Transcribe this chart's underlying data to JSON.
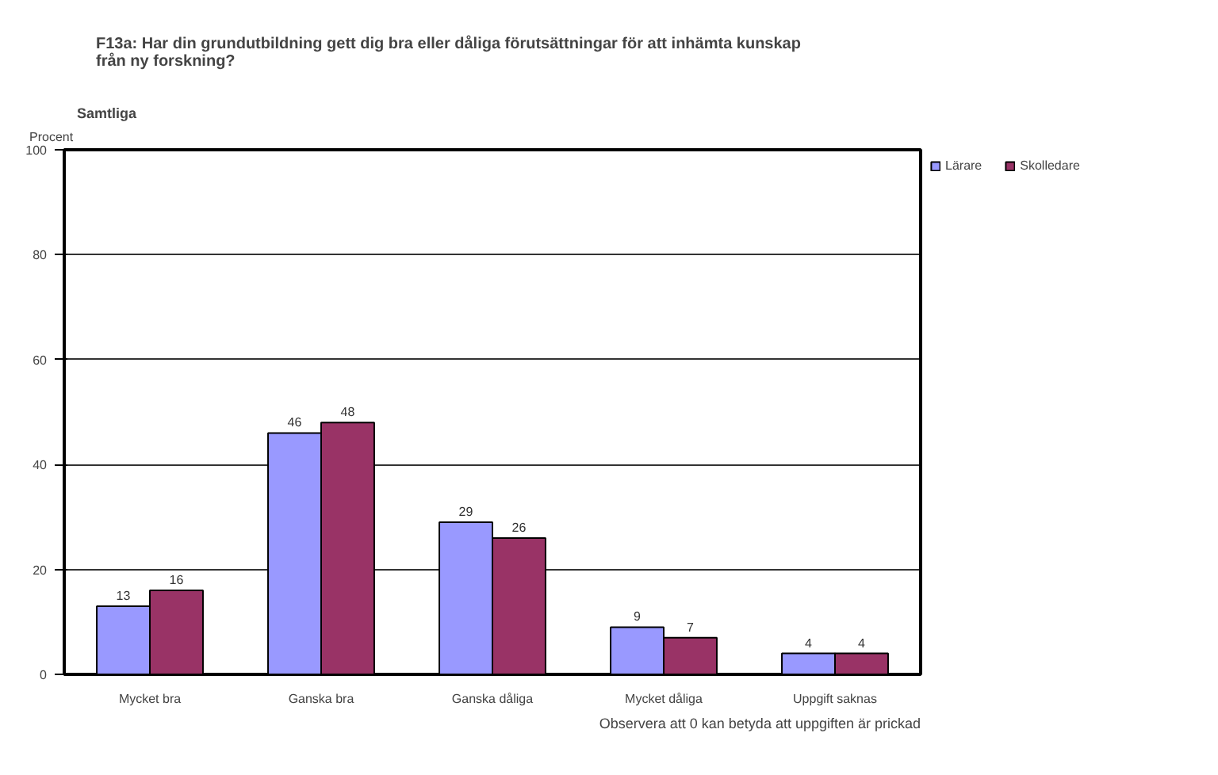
{
  "chart_data": {
    "type": "bar",
    "title": "F13a: Har din grundutbildning gett dig bra eller dåliga förutsättningar för att inhämta kunskap från ny forskning?",
    "subtitle": "Samtliga",
    "ylabel": "Procent",
    "categories": [
      "Mycket bra",
      "Ganska bra",
      "Ganska dåliga",
      "Mycket dåliga",
      "Uppgift saknas"
    ],
    "series": [
      {
        "name": "Lärare",
        "color": "#9999ff",
        "values": [
          13,
          46,
          29,
          9,
          4
        ]
      },
      {
        "name": "Skolledare",
        "color": "#993366",
        "values": [
          16,
          48,
          26,
          7,
          4
        ]
      }
    ],
    "ylim": [
      0,
      100
    ],
    "yticks": [
      0,
      20,
      40,
      60,
      80,
      100
    ],
    "grid": "y",
    "legend": "right",
    "data_labels": true,
    "annotations": [
      "Observera att 0 kan betyda att uppgiften är prickad"
    ]
  }
}
